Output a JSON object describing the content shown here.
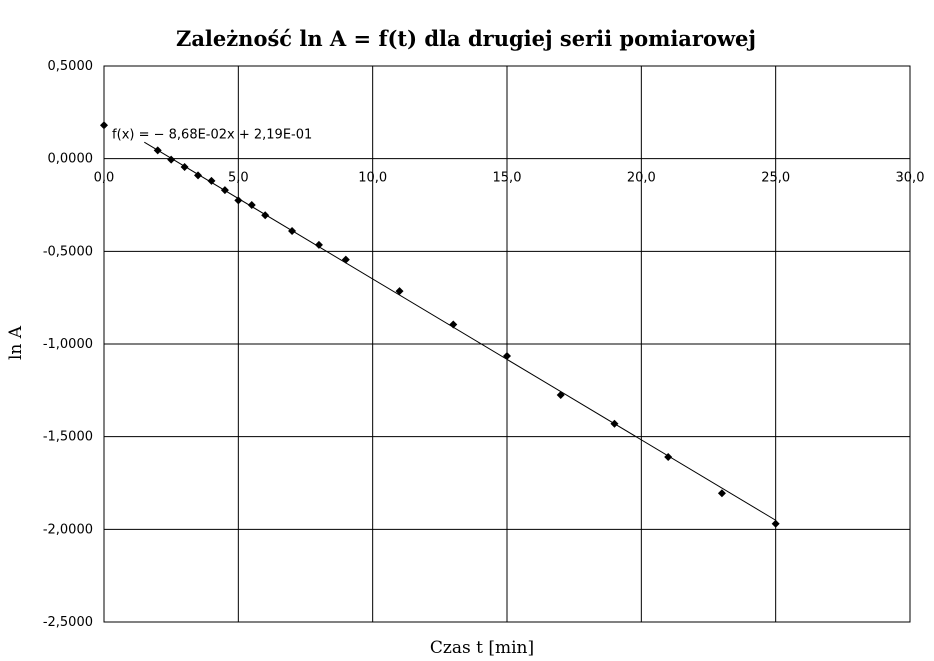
{
  "chart_data": {
    "type": "scatter",
    "title": "Zależność ln A = f(t) dla drugiej serii pomiarowej",
    "xlabel": "Czas t [min]",
    "ylabel": "ln A",
    "xlim": [
      0,
      30
    ],
    "ylim": [
      -2.5,
      0.5
    ],
    "x_ticks": [
      "0,0",
      "5,0",
      "10,0",
      "15,0",
      "20,0",
      "25,0",
      "30,0"
    ],
    "y_ticks": [
      "0,5000",
      "0,0000",
      "-0,5000",
      "-1,0000",
      "-1,5000",
      "-2,0000",
      "-2,5000"
    ],
    "x_tick_values": [
      0,
      5,
      10,
      15,
      20,
      25,
      30
    ],
    "y_tick_values": [
      0.5,
      0,
      -0.5,
      -1,
      -1.5,
      -2,
      -2.5
    ],
    "grid": true,
    "marker": "diamond",
    "series": [
      {
        "points": [
          [
            0,
            0.18
          ],
          [
            2,
            0.045
          ],
          [
            2.5,
            -0.005
          ],
          [
            3,
            -0.045
          ],
          [
            3.5,
            -0.09
          ],
          [
            4,
            -0.12
          ],
          [
            4.5,
            -0.17
          ],
          [
            5,
            -0.225
          ],
          [
            5.5,
            -0.25
          ],
          [
            6,
            -0.305
          ],
          [
            7,
            -0.39
          ],
          [
            8,
            -0.465
          ],
          [
            9,
            -0.545
          ],
          [
            11,
            -0.715
          ],
          [
            13,
            -0.895
          ],
          [
            15,
            -1.065
          ],
          [
            17,
            -1.275
          ],
          [
            19,
            -1.43
          ],
          [
            21,
            -1.61
          ],
          [
            23,
            -1.805
          ],
          [
            25,
            -1.97
          ]
        ]
      }
    ],
    "trendline": {
      "slope": -0.0868,
      "intercept": 0.219,
      "x_range": [
        1.5,
        25
      ],
      "equation": "f(x) = − 8,68E-02x + 2,19E-01"
    }
  }
}
